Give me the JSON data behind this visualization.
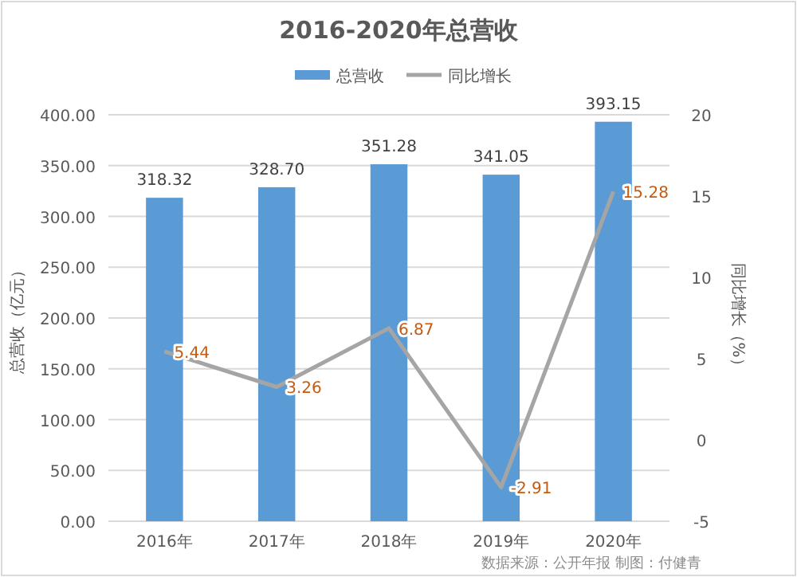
{
  "chart_data": {
    "type": "bar",
    "title": "2016-2020年总营收",
    "ylabel": "总营收（亿元）",
    "y2label": "同比增长（%）",
    "categories": [
      "2016年",
      "2017年",
      "2018年",
      "2019年",
      "2020年"
    ],
    "series": [
      {
        "name": "总营收",
        "color": "#5b9bd5",
        "values": [
          318.32,
          328.7,
          351.28,
          341.05,
          393.15
        ],
        "value_labels": [
          "318.32",
          "328.70",
          "351.28",
          "341.05",
          "393.15"
        ]
      },
      {
        "name": "同比增长",
        "type": "line",
        "axis": "y2",
        "color": "#a5a5a5",
        "values": [
          5.44,
          3.26,
          6.87,
          -2.91,
          15.28
        ],
        "value_labels": [
          "5.44",
          "3.26",
          "6.87",
          "-2.91",
          "15.28"
        ]
      }
    ],
    "ylim": [
      0,
      400
    ],
    "yticks": [
      {
        "value": 0,
        "label": "0.00"
      },
      {
        "value": 50,
        "label": "50.00"
      },
      {
        "value": 100,
        "label": "100.00"
      },
      {
        "value": 150,
        "label": "150.00"
      },
      {
        "value": 200,
        "label": "200.00"
      },
      {
        "value": 250,
        "label": "250.00"
      },
      {
        "value": 300,
        "label": "300.00"
      },
      {
        "value": 350,
        "label": "350.00"
      },
      {
        "value": 400,
        "label": "400.00"
      }
    ],
    "y2lim": [
      -5,
      20
    ],
    "y2ticks": [
      -5,
      0,
      5,
      10,
      15,
      20
    ],
    "grid": "y",
    "legend": "top",
    "annotations": [
      "数据来源：公开年报 制图：付健青"
    ]
  }
}
